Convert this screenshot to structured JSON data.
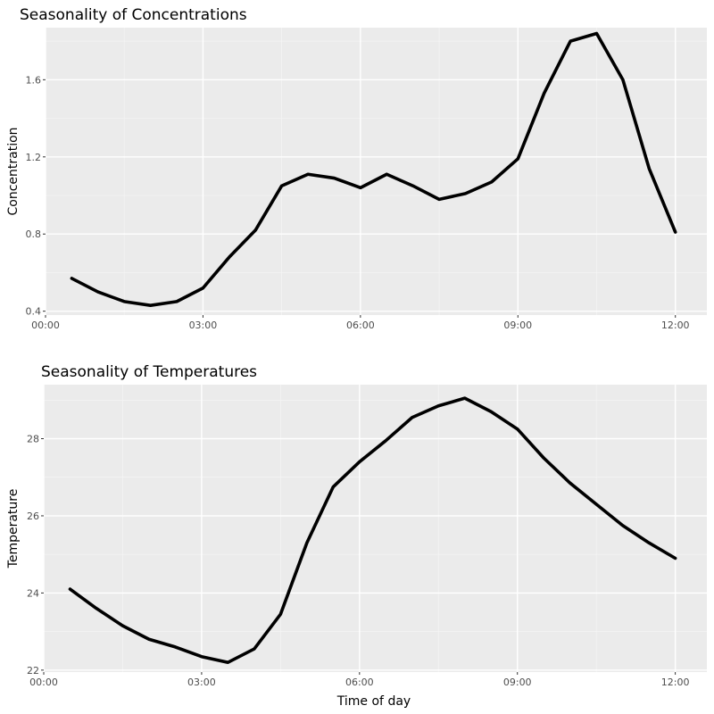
{
  "chart_data": [
    {
      "type": "line",
      "title": "Seasonality of Concentrations",
      "xlabel": "",
      "ylabel": "Concentration",
      "x_ticks": [
        "00:00",
        "03:00",
        "06:00",
        "09:00",
        "12:00"
      ],
      "y_ticks": [
        "0.4",
        "0.8",
        "1.2",
        "1.6"
      ],
      "xlim": [
        0,
        12.6
      ],
      "ylim": [
        0.38,
        1.87
      ],
      "grid": true,
      "series": [
        {
          "color": "#000000",
          "x": [
            "00:30",
            "01:00",
            "01:30",
            "02:00",
            "02:30",
            "03:00",
            "03:30",
            "04:00",
            "04:30",
            "05:00",
            "05:30",
            "06:00",
            "06:30",
            "07:00",
            "07:30",
            "08:00",
            "08:30",
            "09:00",
            "09:30",
            "10:00",
            "10:30",
            "11:00",
            "11:30",
            "12:00"
          ],
          "values": [
            0.57,
            0.5,
            0.45,
            0.43,
            0.45,
            0.52,
            0.68,
            0.82,
            1.05,
            1.11,
            1.09,
            1.04,
            1.11,
            1.05,
            0.98,
            1.01,
            1.07,
            1.19,
            1.53,
            1.8,
            1.84,
            1.6,
            1.14,
            0.81
          ]
        }
      ]
    },
    {
      "type": "line",
      "title": "Seasonality of Temperatures",
      "xlabel": "Time of day",
      "ylabel": "Temperature",
      "x_ticks": [
        "00:00",
        "03:00",
        "06:00",
        "09:00",
        "12:00"
      ],
      "y_ticks": [
        "22",
        "24",
        "26",
        "28"
      ],
      "xlim": [
        0,
        12.6
      ],
      "ylim": [
        21.95,
        29.4
      ],
      "grid": true,
      "series": [
        {
          "color": "#000000",
          "x": [
            "00:30",
            "01:00",
            "01:30",
            "02:00",
            "02:30",
            "03:00",
            "03:30",
            "04:00",
            "04:30",
            "05:00",
            "05:30",
            "06:00",
            "06:30",
            "07:00",
            "07:30",
            "08:00",
            "08:30",
            "09:00",
            "09:30",
            "10:00",
            "10:30",
            "11:00",
            "11:30",
            "12:00"
          ],
          "values": [
            24.1,
            23.6,
            23.15,
            22.8,
            22.6,
            22.35,
            22.2,
            22.55,
            23.45,
            25.3,
            26.75,
            27.4,
            27.95,
            28.55,
            28.85,
            29.05,
            28.7,
            28.25,
            27.5,
            26.85,
            26.3,
            25.75,
            25.3,
            24.9
          ]
        }
      ]
    }
  ]
}
